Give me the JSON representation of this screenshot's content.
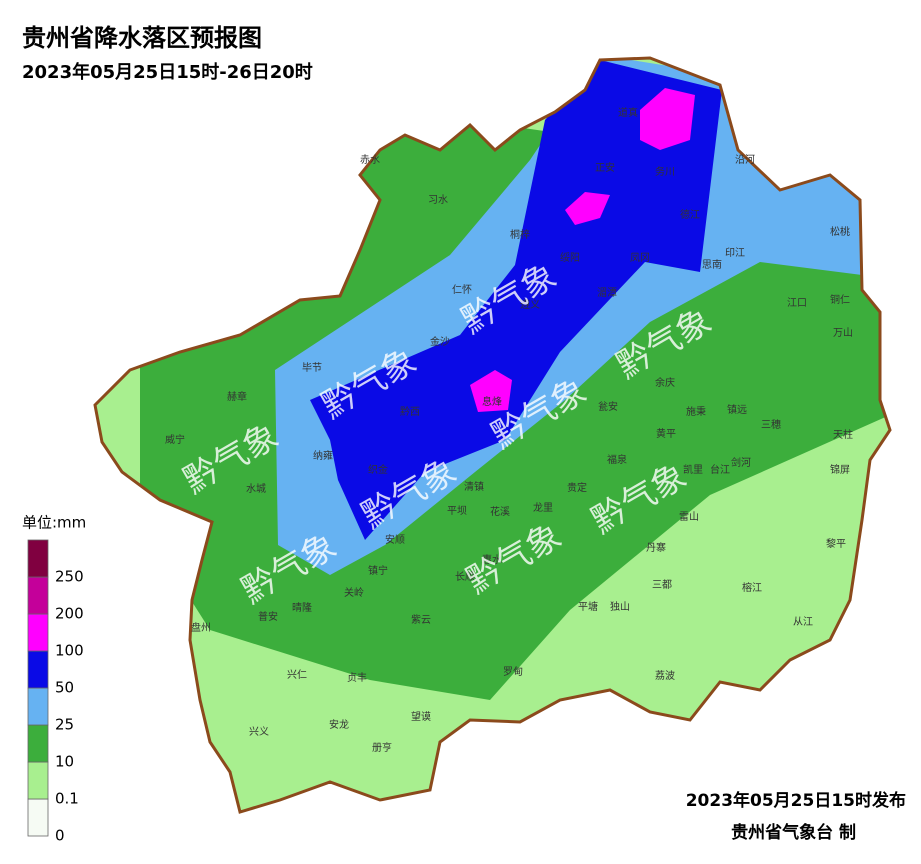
{
  "header": {
    "title": "贵州省降水落区预报图",
    "subtitle": "2023年05月25日15时-26日20时"
  },
  "legend": {
    "unit": "单位:mm",
    "levels": [
      0,
      0.1,
      10,
      25,
      50,
      100,
      200,
      250
    ],
    "colors": [
      "#f6fbf4",
      "#a8ef8f",
      "#3cae3c",
      "#66b2f2",
      "#0a0ae6",
      "#ff00ff",
      "#c4009a",
      "#800040"
    ]
  },
  "watermark": "黔气象",
  "counties": [
    "赤水",
    "习水",
    "桐梓",
    "正安",
    "道真",
    "务川",
    "沿河",
    "德江",
    "松桃",
    "印江",
    "思南",
    "凤冈",
    "绥阳",
    "湄潭",
    "仁怀",
    "遵义",
    "金沙",
    "毕节",
    "赫章",
    "威宁",
    "黔西",
    "息烽",
    "江口",
    "铜仁",
    "万山",
    "余庆",
    "施秉",
    "镇远",
    "三穗",
    "天柱",
    "黄平",
    "瓮安",
    "福泉",
    "凯里",
    "台江",
    "剑河",
    "锦屏",
    "纳雍",
    "织金",
    "水城",
    "清镇",
    "贵定",
    "龙里",
    "花溪",
    "平坝",
    "安顺",
    "镇宁",
    "关岭",
    "晴隆",
    "普安",
    "盘州",
    "兴仁",
    "贞丰",
    "紫云",
    "长顺",
    "惠水",
    "罗甸",
    "平塘",
    "独山",
    "三都",
    "丹寨",
    "雷山",
    "榕江",
    "黎平",
    "从江",
    "荔波",
    "兴义",
    "安龙",
    "册亨",
    "望谟"
  ],
  "footer": {
    "issued": "2023年05月25日15时发布",
    "agency": "贵州省气象台 制"
  }
}
